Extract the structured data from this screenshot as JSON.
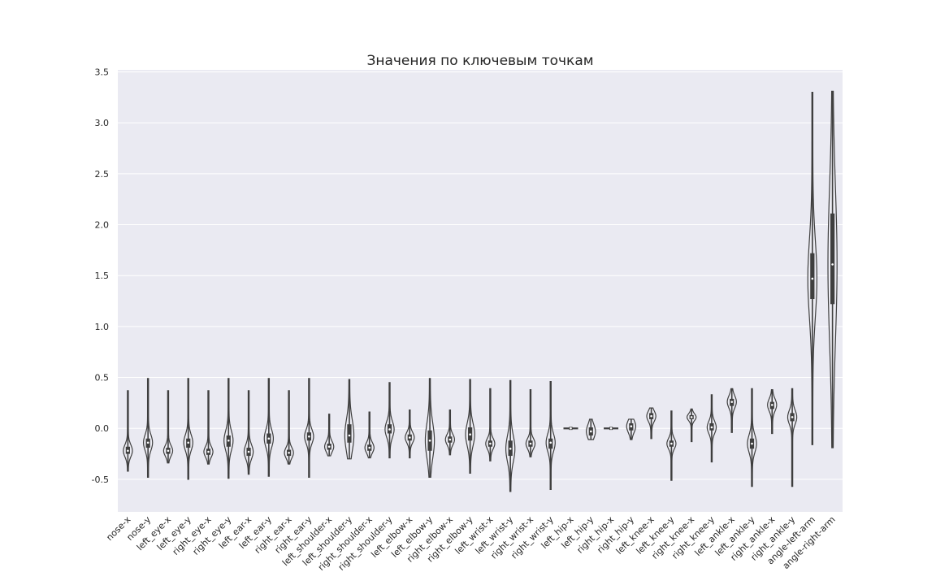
{
  "chart_data": {
    "type": "violin",
    "title": "Значения по ключевым точкам",
    "xlabel": "",
    "ylabel": "",
    "ylim": [
      -0.82,
      3.52
    ],
    "yticks": [
      "-0.5",
      "0.0",
      "0.5",
      "1.0",
      "1.5",
      "2.0",
      "2.5",
      "3.0",
      "3.5"
    ],
    "ytick_values": [
      -0.5,
      0.0,
      0.5,
      1.0,
      1.5,
      2.0,
      2.5,
      3.0,
      3.5
    ],
    "grid": true,
    "background": "#eaeaf2",
    "gridcolor": "#ffffff",
    "violin_color": "#3f3f3f",
    "categories": [
      "nose-x",
      "nose-y",
      "left_eye-x",
      "left_eye-y",
      "right_eye-x",
      "right_eye-y",
      "left_ear-x",
      "left_ear-y",
      "right_ear-x",
      "right_ear-y",
      "left_shoulder-x",
      "left_shoulder-y",
      "right_shoulder-x",
      "right_shoulder-y",
      "left_elbow-x",
      "left_elbow-y",
      "right_elbow-x",
      "right_elbow-y",
      "left_wrist-x",
      "left_wrist-y",
      "right_wrist-x",
      "right_wrist-y",
      "left_hip-x",
      "left_hip-y",
      "right_hip-x",
      "right_hip-y",
      "left_knee-x",
      "left_knee-y",
      "right_knee-x",
      "right_knee-y",
      "left_ankle-x",
      "left_ankle-y",
      "right_ankle-x",
      "right_ankle-y",
      "angle-left-arm",
      "angle-right-arm"
    ],
    "violins": [
      {
        "min": -0.42,
        "q1": -0.25,
        "median": -0.22,
        "q3": -0.18,
        "max": 0.37
      },
      {
        "min": -0.48,
        "q1": -0.19,
        "median": -0.14,
        "q3": -0.1,
        "max": 0.49
      },
      {
        "min": -0.34,
        "q1": -0.25,
        "median": -0.22,
        "q3": -0.19,
        "max": 0.37
      },
      {
        "min": -0.5,
        "q1": -0.19,
        "median": -0.14,
        "q3": -0.1,
        "max": 0.49
      },
      {
        "min": -0.35,
        "q1": -0.26,
        "median": -0.23,
        "q3": -0.2,
        "max": 0.37
      },
      {
        "min": -0.49,
        "q1": -0.18,
        "median": -0.12,
        "q3": -0.07,
        "max": 0.49
      },
      {
        "min": -0.45,
        "q1": -0.27,
        "median": -0.23,
        "q3": -0.19,
        "max": 0.37
      },
      {
        "min": -0.47,
        "q1": -0.15,
        "median": -0.1,
        "q3": -0.05,
        "max": 0.49
      },
      {
        "min": -0.35,
        "q1": -0.27,
        "median": -0.24,
        "q3": -0.21,
        "max": 0.37
      },
      {
        "min": -0.48,
        "q1": -0.12,
        "median": -0.08,
        "q3": -0.04,
        "max": 0.49
      },
      {
        "min": -0.27,
        "q1": -0.21,
        "median": -0.18,
        "q3": -0.15,
        "max": 0.14
      },
      {
        "min": -0.3,
        "q1": -0.14,
        "median": -0.07,
        "q3": 0.04,
        "max": 0.48
      },
      {
        "min": -0.29,
        "q1": -0.22,
        "median": -0.19,
        "q3": -0.16,
        "max": 0.16
      },
      {
        "min": -0.29,
        "q1": -0.05,
        "median": -0.01,
        "q3": 0.04,
        "max": 0.45
      },
      {
        "min": -0.29,
        "q1": -0.12,
        "median": -0.09,
        "q3": -0.06,
        "max": 0.18
      },
      {
        "min": -0.48,
        "q1": -0.22,
        "median": -0.12,
        "q3": -0.02,
        "max": 0.49
      },
      {
        "min": -0.26,
        "q1": -0.14,
        "median": -0.11,
        "q3": -0.08,
        "max": 0.18
      },
      {
        "min": -0.44,
        "q1": -0.12,
        "median": -0.06,
        "q3": 0.01,
        "max": 0.48
      },
      {
        "min": -0.32,
        "q1": -0.18,
        "median": -0.15,
        "q3": -0.12,
        "max": 0.39
      },
      {
        "min": -0.62,
        "q1": -0.27,
        "median": -0.2,
        "q3": -0.12,
        "max": 0.47
      },
      {
        "min": -0.28,
        "q1": -0.18,
        "median": -0.15,
        "q3": -0.12,
        "max": 0.38
      },
      {
        "min": -0.6,
        "q1": -0.2,
        "median": -0.14,
        "q3": -0.1,
        "max": 0.46
      },
      {
        "min": -0.01,
        "q1": -0.005,
        "median": 0.0,
        "q3": 0.005,
        "max": 0.01
      },
      {
        "min": -0.11,
        "q1": -0.07,
        "median": -0.03,
        "q3": 0.01,
        "max": 0.09
      },
      {
        "min": -0.01,
        "q1": -0.005,
        "median": 0.0,
        "q3": 0.005,
        "max": 0.01
      },
      {
        "min": -0.11,
        "q1": -0.02,
        "median": 0.02,
        "q3": 0.05,
        "max": 0.09
      },
      {
        "min": -0.1,
        "q1": 0.09,
        "median": 0.12,
        "q3": 0.15,
        "max": 0.2
      },
      {
        "min": -0.51,
        "q1": -0.18,
        "median": -0.15,
        "q3": -0.12,
        "max": 0.17
      },
      {
        "min": -0.13,
        "q1": 0.09,
        "median": 0.11,
        "q3": 0.13,
        "max": 0.19
      },
      {
        "min": -0.33,
        "q1": -0.02,
        "median": 0.01,
        "q3": 0.05,
        "max": 0.33
      },
      {
        "min": -0.04,
        "q1": 0.22,
        "median": 0.26,
        "q3": 0.29,
        "max": 0.39
      },
      {
        "min": -0.57,
        "q1": -0.2,
        "median": -0.15,
        "q3": -0.1,
        "max": 0.39
      },
      {
        "min": -0.05,
        "q1": 0.19,
        "median": 0.23,
        "q3": 0.26,
        "max": 0.38
      },
      {
        "min": -0.57,
        "q1": 0.07,
        "median": 0.11,
        "q3": 0.15,
        "max": 0.39
      },
      {
        "min": -0.16,
        "q1": 1.27,
        "median": 1.47,
        "q3": 1.72,
        "max": 3.3
      },
      {
        "min": -0.19,
        "q1": 1.22,
        "median": 1.61,
        "q3": 2.11,
        "max": 3.31
      }
    ]
  }
}
